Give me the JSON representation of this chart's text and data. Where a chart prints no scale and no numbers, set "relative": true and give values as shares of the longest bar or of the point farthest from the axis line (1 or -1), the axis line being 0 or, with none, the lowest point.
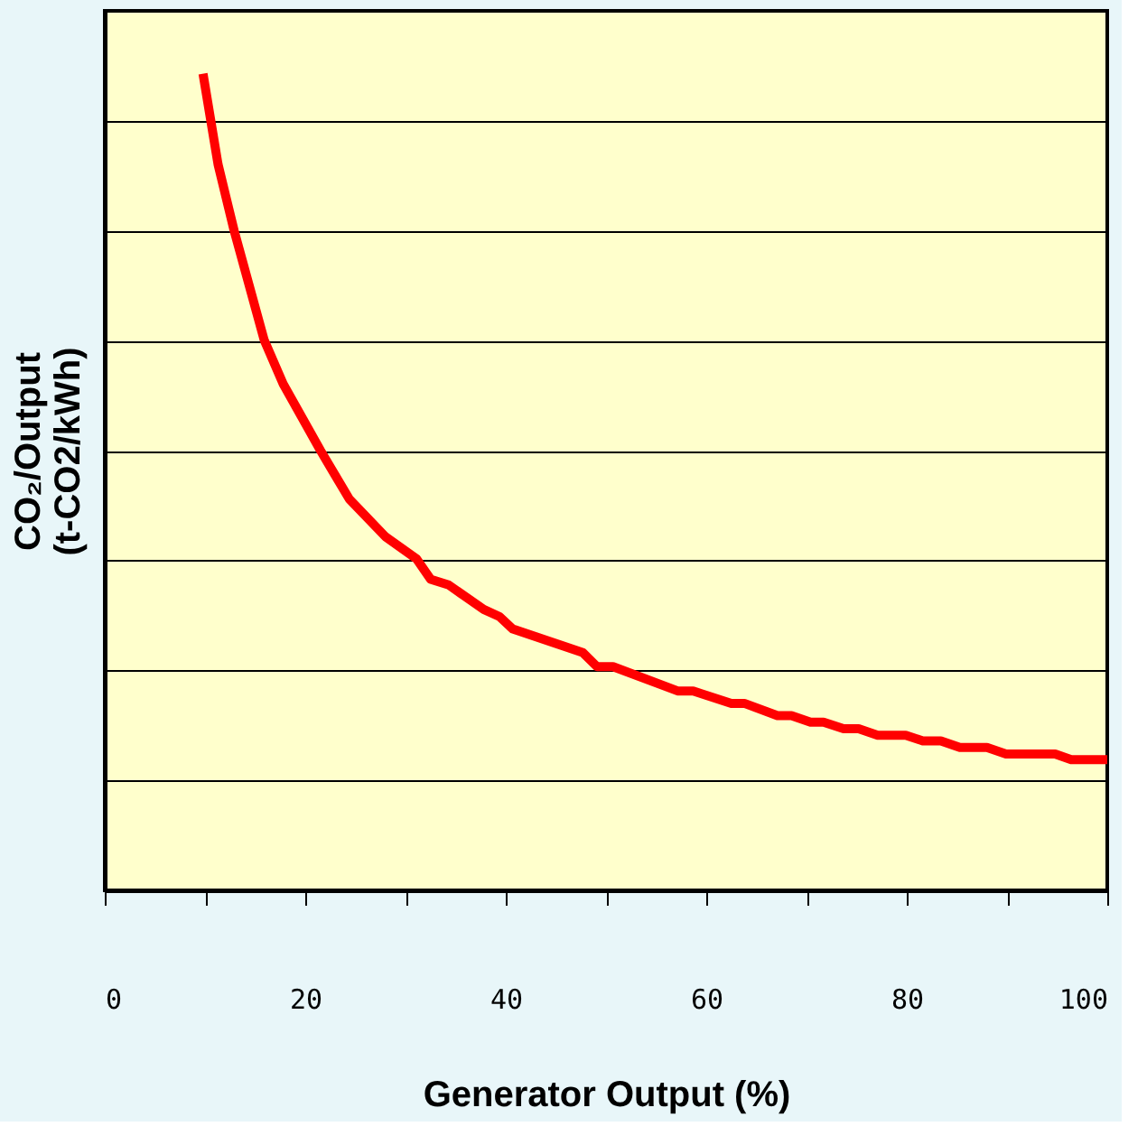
{
  "chart_data": {
    "type": "line",
    "relative": true,
    "xlabel": "Generator Output (%)",
    "ylabel": "CO₂/Output\n(t-CO2/kWh)",
    "xlim": [
      0,
      100
    ],
    "xticks": [
      0,
      {
        "value": 10,
        "label": null
      },
      20,
      {
        "value": 30,
        "label": null
      },
      40,
      {
        "value": 50,
        "label": null
      },
      60,
      {
        "value": 70,
        "label": null
      },
      80,
      {
        "value": 90,
        "label": null
      },
      100
    ],
    "grid": "y",
    "legend": false,
    "marker": "none",
    "line_style": "solid",
    "series": [
      {
        "color": "#ff0000",
        "x": [
          9.8,
          11.3,
          12.9,
          15.9,
          17.8,
          21.5,
          23.0,
          24.4,
          28.0,
          31.1,
          32.5,
          34.3,
          37.8,
          39.4,
          40.7,
          47.7,
          49.1,
          50.7,
          57.2,
          58.7,
          62.5,
          63.8,
          67.1,
          68.5,
          70.4,
          71.7,
          73.7,
          75.2,
          77.1,
          79.9,
          81.6,
          83.4,
          85.3,
          88.0,
          89.9,
          94.8,
          96.4,
          100
        ],
        "values": [
          1.0,
          0.889,
          0.808,
          0.674,
          0.62,
          0.539,
          0.508,
          0.479,
          0.433,
          0.406,
          0.381,
          0.374,
          0.344,
          0.335,
          0.32,
          0.291,
          0.274,
          0.274,
          0.244,
          0.244,
          0.229,
          0.229,
          0.214,
          0.214,
          0.206,
          0.206,
          0.198,
          0.198,
          0.19,
          0.19,
          0.183,
          0.183,
          0.175,
          0.175,
          0.167,
          0.167,
          0.16,
          0.16
        ]
      }
    ]
  }
}
